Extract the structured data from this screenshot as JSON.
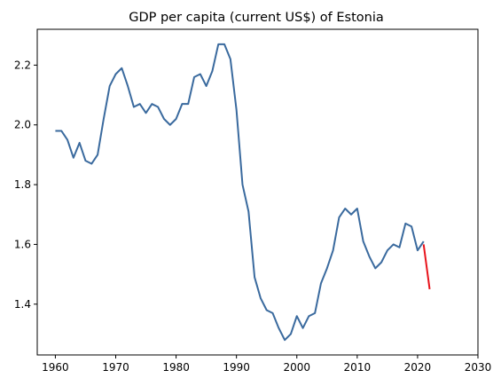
{
  "chart_data": {
    "type": "line",
    "title": "GDP per capita (current US$) of Estonia",
    "xlabel": "",
    "ylabel": "",
    "xlim": [
      1957,
      2030
    ],
    "ylim": [
      1.23,
      2.32
    ],
    "xticks": [
      1960,
      1970,
      1980,
      1990,
      2000,
      2010,
      2020,
      2030
    ],
    "yticks": [
      1.4,
      1.6,
      1.8,
      2.0,
      2.2
    ],
    "ytick_labels": [
      "1.4",
      "1.6",
      "1.8",
      "2.0",
      "2.2"
    ],
    "grid": false,
    "legend": "none",
    "series": [
      {
        "color": "#3a6a9e",
        "x": [
          1960,
          1961,
          1962,
          1963,
          1964,
          1965,
          1966,
          1967,
          1968,
          1969,
          1970,
          1971,
          1972,
          1973,
          1974,
          1975,
          1976,
          1977,
          1978,
          1979,
          1980,
          1981,
          1982,
          1983,
          1984,
          1985,
          1986,
          1987,
          1988,
          1989,
          1990,
          1991,
          1992,
          1993,
          1994,
          1995,
          1996,
          1997,
          1998,
          1999,
          2000,
          2001,
          2002,
          2003,
          2004,
          2005,
          2006,
          2007,
          2008,
          2009,
          2010,
          2011,
          2012,
          2013,
          2014,
          2015,
          2016,
          2017,
          2018,
          2019,
          2020,
          2021
        ],
        "y": [
          1.98,
          1.98,
          1.95,
          1.89,
          1.94,
          1.88,
          1.87,
          1.9,
          2.02,
          2.13,
          2.17,
          2.19,
          2.13,
          2.06,
          2.07,
          2.04,
          2.07,
          2.06,
          2.02,
          2.0,
          2.02,
          2.07,
          2.07,
          2.16,
          2.17,
          2.13,
          2.18,
          2.27,
          2.27,
          2.22,
          2.05,
          1.8,
          1.71,
          1.49,
          1.42,
          1.38,
          1.37,
          1.32,
          1.28,
          1.3,
          1.36,
          1.32,
          1.36,
          1.37,
          1.47,
          1.52,
          1.58,
          1.69,
          1.72,
          1.7,
          1.72,
          1.61,
          1.56,
          1.52,
          1.54,
          1.58,
          1.6,
          1.59,
          1.67,
          1.66,
          1.58,
          1.61
        ]
      },
      {
        "color": "#e8141c",
        "x": [
          2021,
          2022
        ],
        "y": [
          1.6,
          1.45
        ]
      }
    ]
  }
}
